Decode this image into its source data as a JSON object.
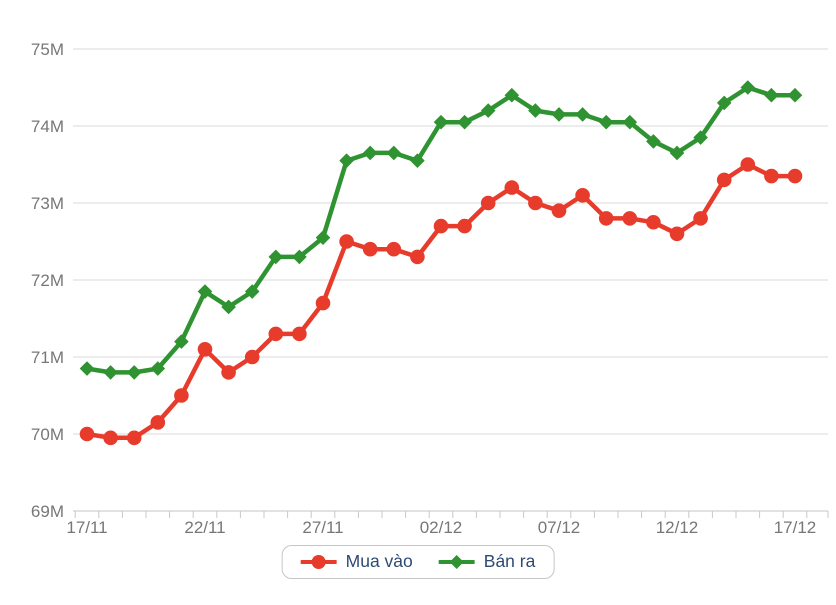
{
  "page": {
    "background": "#ffffff"
  },
  "colors": {
    "grid_line": "#d9d9d9",
    "axis_line": "#c4c4c4",
    "tick_mark": "#c9c9c9",
    "axis_label": "#777777",
    "legend_text": "#2e4a74",
    "legend_border": "#c6c6c6",
    "buy_red": "#e73b2c",
    "sell_green": "#2e9330"
  },
  "chart_data": {
    "type": "line",
    "title": "",
    "xlabel": "",
    "ylabel": "",
    "grid": "horizontal",
    "legend_position": "bottom",
    "ylim": [
      69,
      75
    ],
    "categories": [
      "17/11",
      "18/11",
      "19/11",
      "20/11",
      "21/11",
      "22/11",
      "23/11",
      "24/11",
      "25/11",
      "26/11",
      "27/11",
      "28/11",
      "29/11",
      "30/11",
      "01/12",
      "02/12",
      "03/12",
      "04/12",
      "05/12",
      "06/12",
      "07/12",
      "08/12",
      "09/12",
      "10/12",
      "11/12",
      "12/12",
      "13/12",
      "14/12",
      "15/12",
      "16/12",
      "17/12"
    ],
    "x_major_tick_every": 5,
    "x_major_tick_labels": [
      "17/11",
      "22/11",
      "27/11",
      "02/12",
      "07/12",
      "12/12",
      "17/12"
    ],
    "y_ticks": [
      {
        "value": 75,
        "label": "75M"
      },
      {
        "value": 74,
        "label": "74M"
      },
      {
        "value": 73,
        "label": "73M"
      },
      {
        "value": 72,
        "label": "72M"
      },
      {
        "value": 71,
        "label": "71M"
      },
      {
        "value": 70,
        "label": "70M"
      },
      {
        "value": 69,
        "label": "69M"
      }
    ],
    "series": [
      {
        "name": "Mua vào",
        "color": "#e73b2c",
        "marker": "circle",
        "values": [
          70.0,
          69.95,
          69.95,
          70.15,
          70.5,
          71.1,
          70.8,
          71.0,
          71.3,
          71.3,
          71.7,
          72.5,
          72.4,
          72.4,
          72.3,
          72.7,
          72.7,
          73.0,
          73.2,
          73.0,
          72.9,
          73.1,
          72.8,
          72.8,
          72.75,
          72.6,
          72.8,
          73.3,
          73.5,
          73.35,
          73.35
        ]
      },
      {
        "name": "Bán ra",
        "color": "#2e9330",
        "marker": "diamond",
        "values": [
          70.85,
          70.8,
          70.8,
          70.85,
          71.2,
          71.85,
          71.65,
          71.85,
          72.3,
          72.3,
          72.55,
          73.55,
          73.65,
          73.65,
          73.55,
          74.05,
          74.05,
          74.2,
          74.4,
          74.2,
          74.15,
          74.15,
          74.05,
          74.05,
          73.8,
          73.65,
          73.85,
          74.3,
          74.5,
          74.4,
          74.4
        ]
      }
    ]
  }
}
